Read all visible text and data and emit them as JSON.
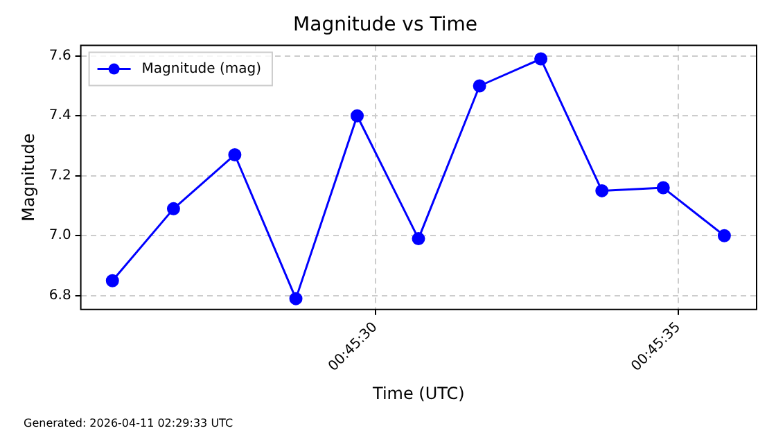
{
  "chart_data": {
    "type": "line",
    "title": "Magnitude vs Time",
    "xlabel": "Time (UTC)",
    "ylabel": "Magnitude",
    "x": [
      0.757128,
      0.757408,
      0.757689,
      0.757969,
      0.75825,
      0.758531,
      0.758811,
      0.759092,
      0.759372,
      0.759653,
      0.759933
    ],
    "series": [
      {
        "name": "Magnitude (mag)",
        "color": "#0000ff",
        "values": [
          6.85,
          7.09,
          7.27,
          6.79,
          7.4,
          6.99,
          7.5,
          7.59,
          7.15,
          7.16,
          7.0
        ]
      }
    ],
    "xlim": [
      0.756983,
      0.760081
    ],
    "xticks": [
      {
        "value": 0.758333,
        "label": "00:45:30"
      },
      {
        "value": 0.759722,
        "label": "00:45:35"
      }
    ],
    "ylim": [
      6.754,
      7.635
    ],
    "yticks": [
      {
        "value": 6.8,
        "label": "6.8"
      },
      {
        "value": 7.0,
        "label": "7.0"
      },
      {
        "value": 7.2,
        "label": "7.2"
      },
      {
        "value": 7.4,
        "label": "7.4"
      },
      {
        "value": 7.6,
        "label": "7.6"
      }
    ],
    "grid": true,
    "legend": "top left",
    "marker": "circle",
    "line_style": "solid",
    "annotations": [
      "Generated: 2026-04-11 02:29:33 UTC"
    ]
  }
}
